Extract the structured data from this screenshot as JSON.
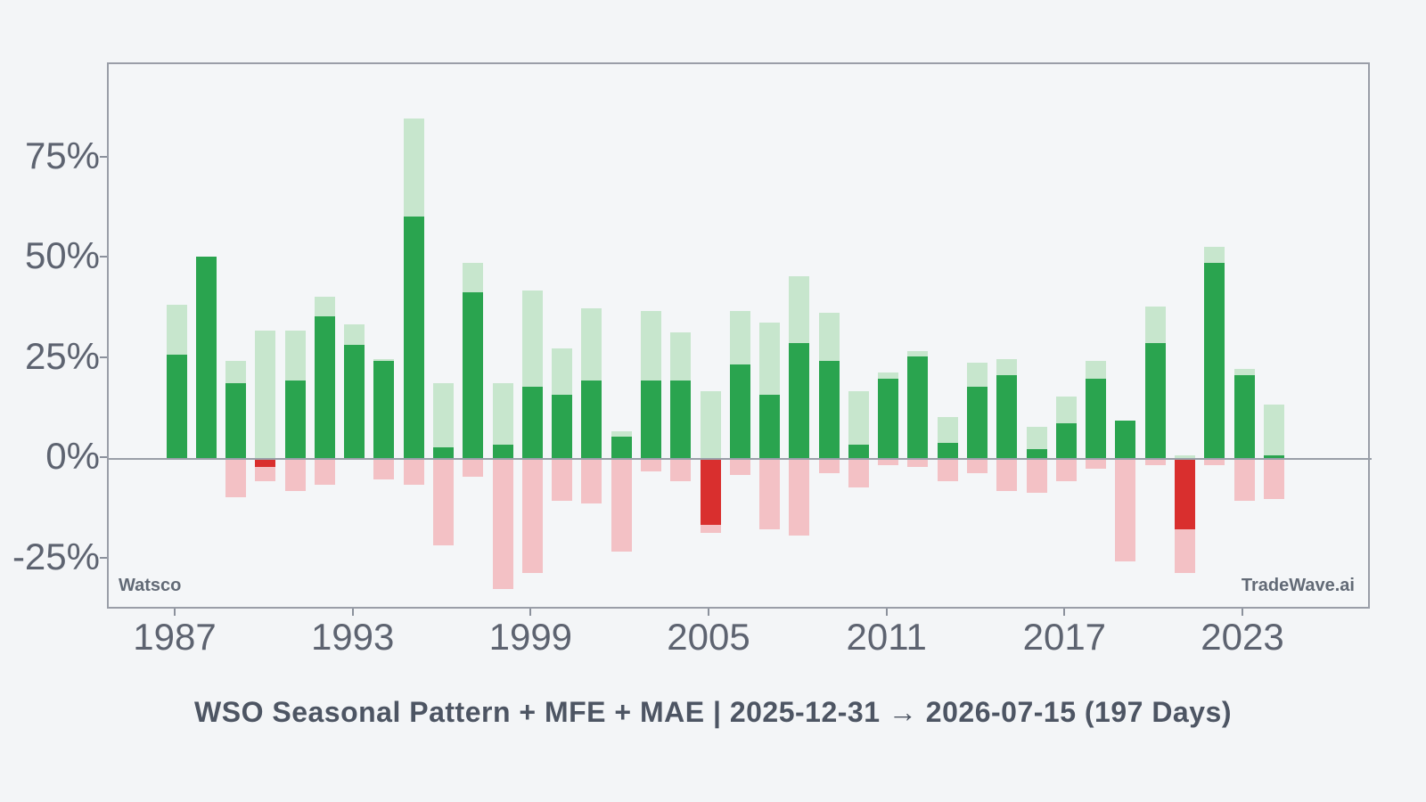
{
  "title": "WSO Seasonal Pattern + MFE + MAE | 2025-12-31 → 2026-07-15 (197 Days)",
  "watermarks": {
    "left": "Watsco",
    "right": "TradeWave.ai"
  },
  "colors": {
    "pattern_positive": "#2aa44f",
    "pattern_negative": "#d92f2e",
    "mfe_light_green": "#c7e6cd",
    "mae_light_pink": "#f3c1c5",
    "background": "#f3f5f7",
    "plot_frame": "#9a9ea8",
    "zero_line": "#999fa8",
    "tick_text": "#5d6370",
    "title_text": "#4d5563",
    "watermark_text": "#626a76"
  },
  "chart_data": {
    "type": "bar",
    "title": "WSO Seasonal Pattern + MFE + MAE | 2025-12-31 → 2026-07-15 (197 Days)",
    "xlabel": "",
    "ylabel": "",
    "x": [
      1987,
      1988,
      1989,
      1990,
      1991,
      1992,
      1993,
      1994,
      1995,
      1996,
      1997,
      1998,
      1999,
      2000,
      2001,
      2002,
      2003,
      2004,
      2005,
      2006,
      2007,
      2008,
      2009,
      2010,
      2011,
      2012,
      2013,
      2014,
      2015,
      2016,
      2017,
      2018,
      2019,
      2020,
      2021,
      2022,
      2023,
      2024
    ],
    "series": [
      {
        "name": "Seasonal Pattern (%)",
        "values": [
          26,
          50.5,
          19,
          -2,
          19.5,
          35.5,
          28.5,
          24.5,
          60.5,
          3,
          41.5,
          3.5,
          18,
          16,
          19.5,
          5.5,
          19.5,
          19.5,
          -16.5,
          23.5,
          16,
          29,
          24.5,
          3.5,
          20,
          25.5,
          4,
          18,
          21,
          2.5,
          9,
          20,
          9.5,
          29,
          -17.5,
          49,
          21,
          1
        ]
      },
      {
        "name": "MFE (%)",
        "values": [
          38.5,
          50.5,
          24.5,
          32,
          32,
          40.5,
          33.5,
          25,
          85,
          19,
          49,
          19,
          42,
          27.5,
          37.5,
          7,
          37,
          31.5,
          17,
          37,
          34,
          45.5,
          36.5,
          17,
          21.5,
          27,
          10.5,
          24,
          25,
          8,
          15.5,
          24.5,
          9.5,
          38,
          1,
          53,
          22.5,
          13.5
        ]
      },
      {
        "name": "MAE (%)",
        "values": [
          0,
          0,
          -9.5,
          -5.5,
          -8,
          -6.5,
          0,
          -5,
          -6.5,
          -21.5,
          -4.5,
          -32.5,
          -28.5,
          -10.5,
          -11,
          -23,
          -3,
          -5.5,
          -18.5,
          -4,
          -17.5,
          -19,
          -3.5,
          -7,
          -1.5,
          -2,
          -5.5,
          -3.5,
          -8,
          -8.5,
          -5.5,
          -2.5,
          -25.5,
          -1.5,
          -28.5,
          -1.5,
          -10.5,
          -10
        ]
      }
    ],
    "xticks": [
      1987,
      1993,
      1999,
      2005,
      2011,
      2017,
      2023
    ],
    "ytick_labels": [
      "75%",
      "50%",
      "25%",
      "0%",
      "-25%"
    ],
    "ytick_values": [
      75,
      50,
      25,
      0,
      -25
    ],
    "ylim": [
      -37.8,
      98.4
    ],
    "xlim": [
      1984.7,
      2027.3
    ],
    "grid": false,
    "legend": "none"
  }
}
